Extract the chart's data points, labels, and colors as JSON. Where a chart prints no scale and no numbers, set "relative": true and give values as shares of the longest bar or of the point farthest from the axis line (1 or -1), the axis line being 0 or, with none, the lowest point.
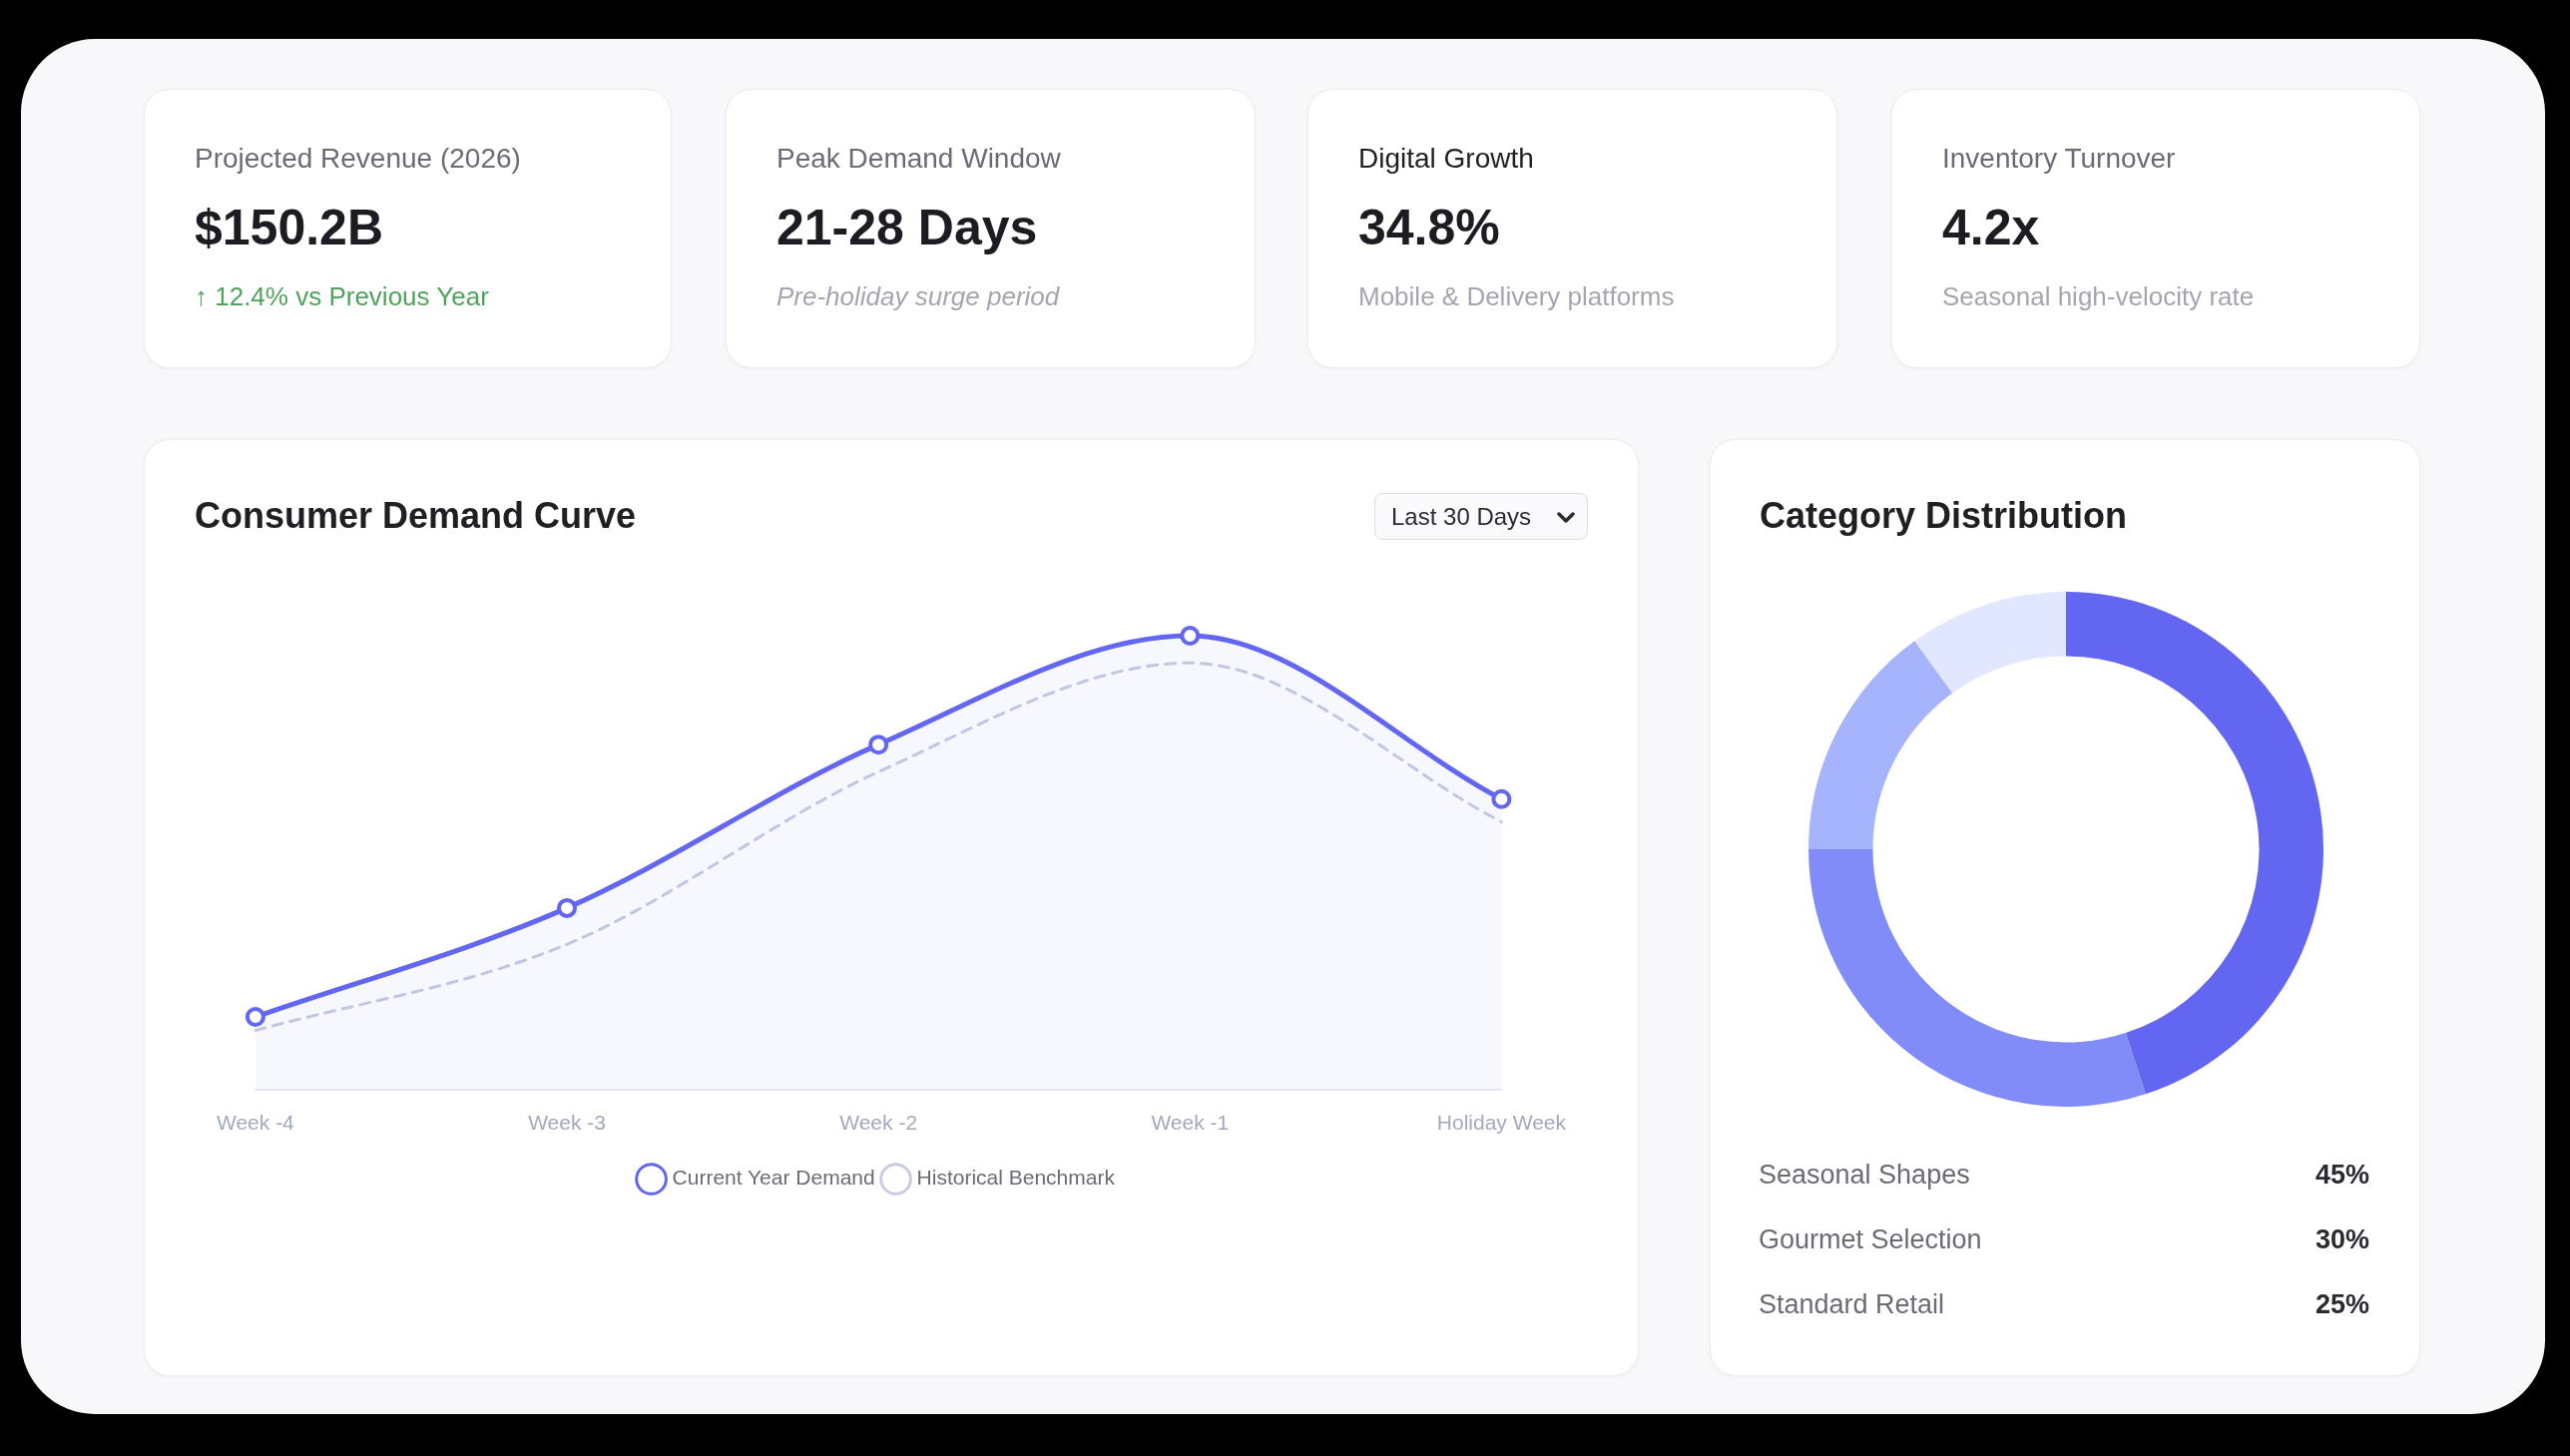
{
  "chart_data": [
    {
      "type": "other",
      "title": "Projected Revenue (2026)",
      "annotations": [
        "$150.2B",
        "↑ 12.4% vs Previous Year"
      ]
    },
    {
      "type": "other",
      "title": "Peak Demand Window",
      "annotations": [
        "21-28 Days",
        "Pre-holiday surge period"
      ]
    },
    {
      "type": "other",
      "title": "Digital Growth",
      "annotations": [
        "34.8%",
        "Mobile & Delivery platforms"
      ]
    },
    {
      "type": "other",
      "title": "Inventory Turnover",
      "annotations": [
        "4.2x",
        "Seasonal high-velocity rate"
      ]
    },
    {
      "type": "line",
      "title": "Consumer Demand Curve",
      "annotations": [
        "Last 30 Days"
      ],
      "categories": [
        "Week -4",
        "Week -3",
        "Week -2",
        "Week -1",
        "Holiday Week"
      ],
      "relative": true,
      "legend": "bottom",
      "series": [
        {
          "name": "Current Year Demand",
          "type": "area",
          "color": "#6366f1",
          "marker": "circle",
          "values": [
            0.16,
            0.4,
            0.76,
            1,
            0.64
          ]
        },
        {
          "name": "Historical Benchmark",
          "type": "line",
          "color": "#c9cce0",
          "marker": "none",
          "line_style": "dashed",
          "values": [
            0.13,
            0.32,
            0.7,
            0.94,
            0.59
          ]
        }
      ]
    },
    {
      "type": "donut",
      "title": "Category Distribution",
      "categories": [
        null,
        null,
        null,
        null
      ],
      "values": [
        45,
        30,
        15,
        10
      ],
      "colors": [
        "#6366f1",
        "#818cf8",
        "#a5b4fc",
        "#e0e7ff"
      ]
    },
    {
      "type": "other",
      "categories": [
        "Seasonal Shapes",
        "Gourmet Selection",
        "Standard Retail"
      ],
      "value_labels": [
        "45%",
        "30%",
        "25%"
      ]
    }
  ]
}
